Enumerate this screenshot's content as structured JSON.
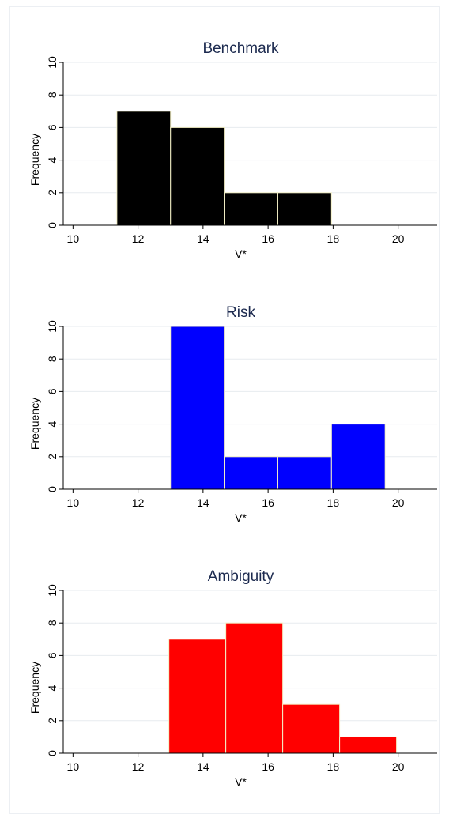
{
  "chart_data": [
    {
      "type": "bar",
      "title": "Benchmark",
      "xlabel": "V*",
      "ylabel": "Frequency",
      "xlim": [
        9.7,
        21.2
      ],
      "ylim": [
        0,
        10
      ],
      "x_ticks": [
        "10",
        "12",
        "14",
        "16",
        "18",
        "20"
      ],
      "y_ticks": [
        "0",
        "2",
        "4",
        "6",
        "8",
        "10"
      ],
      "color": "#000000",
      "bins": [
        {
          "x0": 11.35,
          "x1": 13.0,
          "count": 7
        },
        {
          "x0": 13.0,
          "x1": 14.65,
          "count": 6
        },
        {
          "x0": 14.65,
          "x1": 16.3,
          "count": 2
        },
        {
          "x0": 16.3,
          "x1": 17.95,
          "count": 2
        }
      ],
      "grid": true
    },
    {
      "type": "bar",
      "title": "Risk",
      "xlabel": "V*",
      "ylabel": "Frequency",
      "xlim": [
        9.7,
        21.2
      ],
      "ylim": [
        0,
        10
      ],
      "x_ticks": [
        "10",
        "12",
        "14",
        "16",
        "18",
        "20"
      ],
      "y_ticks": [
        "0",
        "2",
        "4",
        "6",
        "8",
        "10"
      ],
      "color": "#0000ff",
      "bins": [
        {
          "x0": 13.0,
          "x1": 14.65,
          "count": 10
        },
        {
          "x0": 14.65,
          "x1": 16.3,
          "count": 2
        },
        {
          "x0": 16.3,
          "x1": 17.95,
          "count": 2
        },
        {
          "x0": 17.95,
          "x1": 19.6,
          "count": 4
        }
      ],
      "grid": true
    },
    {
      "type": "bar",
      "title": "Ambiguity",
      "xlabel": "V*",
      "ylabel": "Frequency",
      "xlim": [
        9.7,
        21.2
      ],
      "ylim": [
        0,
        10
      ],
      "x_ticks": [
        "10",
        "12",
        "14",
        "16",
        "18",
        "20"
      ],
      "y_ticks": [
        "0",
        "2",
        "4",
        "6",
        "8",
        "10"
      ],
      "color": "#ff0000",
      "bins": [
        {
          "x0": 12.95,
          "x1": 14.7,
          "count": 7
        },
        {
          "x0": 14.7,
          "x1": 16.45,
          "count": 8
        },
        {
          "x0": 16.45,
          "x1": 18.2,
          "count": 3
        },
        {
          "x0": 18.2,
          "x1": 19.95,
          "count": 1
        }
      ],
      "grid": true
    }
  ]
}
